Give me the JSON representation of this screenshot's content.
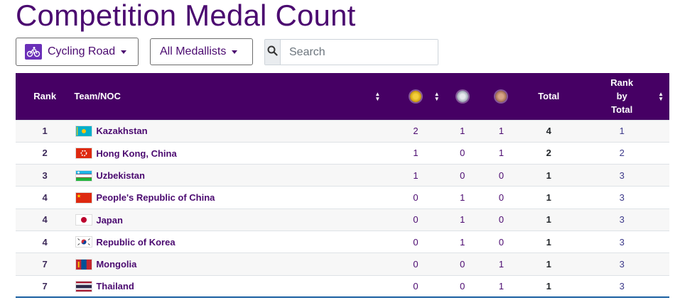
{
  "page": {
    "title": "Competition Medal Count"
  },
  "filters": {
    "sport_label": "Cycling Road",
    "sport_icon": "cycling-road-icon",
    "medallist_label": "All Medallists",
    "search_placeholder": "Search"
  },
  "colors": {
    "header_bg": "#460064",
    "title": "#4b0a70"
  },
  "table": {
    "headers": {
      "rank": "Rank",
      "team": "Team/NOC",
      "gold": "gold-medal-icon",
      "silver": "silver-medal-icon",
      "bronze": "bronze-medal-icon",
      "total": "Total",
      "rank_by_total": "Rank by Total",
      "rbt_line1": "Rank",
      "rbt_line2": "by",
      "rbt_line3": "Total"
    },
    "rows": [
      {
        "rank": "1",
        "team": "Kazakhstan",
        "flag": "kazakhstan-flag",
        "gold": "2",
        "silver": "1",
        "bronze": "1",
        "total": "4",
        "rank_by_total": "1"
      },
      {
        "rank": "2",
        "team": "Hong Kong, China",
        "flag": "hong-kong-flag",
        "gold": "1",
        "silver": "0",
        "bronze": "1",
        "total": "2",
        "rank_by_total": "2"
      },
      {
        "rank": "3",
        "team": "Uzbekistan",
        "flag": "uzbekistan-flag",
        "gold": "1",
        "silver": "0",
        "bronze": "0",
        "total": "1",
        "rank_by_total": "3"
      },
      {
        "rank": "4",
        "team": "People's Republic of China",
        "flag": "china-flag",
        "gold": "0",
        "silver": "1",
        "bronze": "0",
        "total": "1",
        "rank_by_total": "3"
      },
      {
        "rank": "4",
        "team": "Japan",
        "flag": "japan-flag",
        "gold": "0",
        "silver": "1",
        "bronze": "0",
        "total": "1",
        "rank_by_total": "3"
      },
      {
        "rank": "4",
        "team": "Republic of Korea",
        "flag": "korea-flag",
        "gold": "0",
        "silver": "1",
        "bronze": "0",
        "total": "1",
        "rank_by_total": "3"
      },
      {
        "rank": "7",
        "team": "Mongolia",
        "flag": "mongolia-flag",
        "gold": "0",
        "silver": "0",
        "bronze": "1",
        "total": "1",
        "rank_by_total": "3"
      },
      {
        "rank": "7",
        "team": "Thailand",
        "flag": "thailand-flag",
        "gold": "0",
        "silver": "0",
        "bronze": "1",
        "total": "1",
        "rank_by_total": "3"
      }
    ]
  }
}
